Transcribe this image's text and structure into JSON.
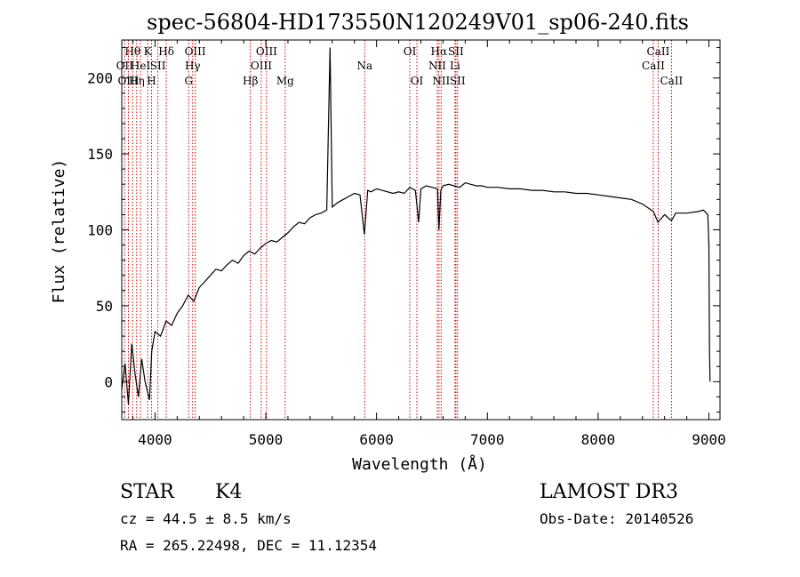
{
  "chart_data": {
    "type": "line",
    "title": "spec-56804-HD173550N120249V01_sp06-240.fits",
    "xlabel": "Wavelength (Å)",
    "ylabel": "Flux (relative)",
    "xlim": [
      3700,
      9100
    ],
    "ylim": [
      -25,
      225
    ],
    "x_ticks": [
      4000,
      5000,
      6000,
      7000,
      8000,
      9000
    ],
    "y_ticks": [
      0,
      50,
      100,
      150,
      200
    ],
    "series": [
      {
        "name": "flux",
        "points": [
          [
            3700,
            -5
          ],
          [
            3730,
            12
          ],
          [
            3760,
            -15
          ],
          [
            3790,
            25
          ],
          [
            3820,
            5
          ],
          [
            3850,
            -10
          ],
          [
            3880,
            15
          ],
          [
            3910,
            0
          ],
          [
            3950,
            -12
          ],
          [
            3970,
            20
          ],
          [
            4000,
            33
          ],
          [
            4050,
            30
          ],
          [
            4100,
            40
          ],
          [
            4150,
            37
          ],
          [
            4200,
            45
          ],
          [
            4250,
            50
          ],
          [
            4300,
            57
          ],
          [
            4350,
            53
          ],
          [
            4400,
            62
          ],
          [
            4450,
            66
          ],
          [
            4500,
            70
          ],
          [
            4550,
            74
          ],
          [
            4600,
            73
          ],
          [
            4650,
            77
          ],
          [
            4700,
            80
          ],
          [
            4750,
            78
          ],
          [
            4800,
            83
          ],
          [
            4850,
            86
          ],
          [
            4900,
            84
          ],
          [
            4950,
            88
          ],
          [
            5000,
            91
          ],
          [
            5050,
            93
          ],
          [
            5100,
            92
          ],
          [
            5150,
            95
          ],
          [
            5200,
            98
          ],
          [
            5250,
            102
          ],
          [
            5300,
            105
          ],
          [
            5350,
            104
          ],
          [
            5400,
            108
          ],
          [
            5450,
            110
          ],
          [
            5500,
            111
          ],
          [
            5550,
            113
          ],
          [
            5580,
            220
          ],
          [
            5600,
            115
          ],
          [
            5650,
            118
          ],
          [
            5700,
            120
          ],
          [
            5750,
            122
          ],
          [
            5800,
            124
          ],
          [
            5850,
            123
          ],
          [
            5890,
            97
          ],
          [
            5920,
            126
          ],
          [
            5950,
            125
          ],
          [
            6000,
            127
          ],
          [
            6050,
            126
          ],
          [
            6100,
            125
          ],
          [
            6150,
            124
          ],
          [
            6200,
            125
          ],
          [
            6250,
            124
          ],
          [
            6300,
            128
          ],
          [
            6350,
            126
          ],
          [
            6380,
            105
          ],
          [
            6400,
            127
          ],
          [
            6450,
            129
          ],
          [
            6500,
            128
          ],
          [
            6550,
            127
          ],
          [
            6563,
            100
          ],
          [
            6580,
            126
          ],
          [
            6600,
            129
          ],
          [
            6650,
            130
          ],
          [
            6700,
            129
          ],
          [
            6750,
            128
          ],
          [
            6800,
            131
          ],
          [
            6850,
            130
          ],
          [
            6900,
            129
          ],
          [
            6950,
            129
          ],
          [
            7000,
            128
          ],
          [
            7100,
            128
          ],
          [
            7200,
            127
          ],
          [
            7300,
            127
          ],
          [
            7400,
            126
          ],
          [
            7500,
            126
          ],
          [
            7600,
            125
          ],
          [
            7700,
            125
          ],
          [
            7800,
            124
          ],
          [
            7900,
            124
          ],
          [
            8000,
            123
          ],
          [
            8100,
            122
          ],
          [
            8200,
            121
          ],
          [
            8300,
            120
          ],
          [
            8400,
            117
          ],
          [
            8500,
            112
          ],
          [
            8540,
            105
          ],
          [
            8600,
            110
          ],
          [
            8662,
            106
          ],
          [
            8700,
            111
          ],
          [
            8800,
            111
          ],
          [
            8900,
            112
          ],
          [
            8950,
            113
          ],
          [
            8990,
            110
          ],
          [
            9000,
            90
          ],
          [
            9005,
            20
          ],
          [
            9010,
            0
          ]
        ]
      }
    ],
    "emission_lines": [
      {
        "x": 3726,
        "label": "OII",
        "row": 2
      },
      {
        "x": 3760,
        "label": "OIII",
        "row": 3
      },
      {
        "x": 3798,
        "label": "Hθ",
        "row": 1
      },
      {
        "x": 3835,
        "label": "Hη",
        "row": 3
      },
      {
        "x": 3869,
        "label": "HeI",
        "row": 2
      },
      {
        "x": 3934,
        "label": "K",
        "row": 1
      },
      {
        "x": 3969,
        "label": "H",
        "row": 3
      },
      {
        "x": 4026,
        "label": "SII",
        "row": 2
      },
      {
        "x": 4102,
        "label": "Hδ",
        "row": 1
      },
      {
        "x": 4304,
        "label": "G",
        "row": 3
      },
      {
        "x": 4340,
        "label": "Hγ",
        "row": 2
      },
      {
        "x": 4363,
        "label": "OIII",
        "row": 1
      },
      {
        "x": 4861,
        "label": "Hβ",
        "row": 3
      },
      {
        "x": 4959,
        "label": "OIII",
        "row": 2
      },
      {
        "x": 5007,
        "label": "OIII",
        "row": 1
      },
      {
        "x": 5175,
        "label": "Mg",
        "row": 3
      },
      {
        "x": 5893,
        "label": "Na",
        "row": 2
      },
      {
        "x": 6300,
        "label": "OI",
        "row": 1
      },
      {
        "x": 6364,
        "label": "OI",
        "row": 3
      },
      {
        "x": 6548,
        "label": "NII",
        "row": 2
      },
      {
        "x": 6563,
        "label": "Hα",
        "row": 1
      },
      {
        "x": 6583,
        "label": "NII",
        "row": 3
      },
      {
        "x": 6708,
        "label": "Li",
        "row": 2
      },
      {
        "x": 6716,
        "label": "SII",
        "row": 1
      },
      {
        "x": 6731,
        "label": "SII",
        "row": 3
      },
      {
        "x": 8498,
        "label": "CaII",
        "row": 2
      },
      {
        "x": 8542,
        "label": "CaII",
        "row": 1
      },
      {
        "x": 8662,
        "label": "CaII",
        "row": 3
      }
    ]
  },
  "info": {
    "class": "STAR",
    "subclass": "K4",
    "survey": "LAMOST DR3",
    "cz": "cz = 44.5 ± 8.5 km/s",
    "obs_date": "Obs-Date: 20140526",
    "radec": "RA = 265.22498, DEC =  11.12354"
  },
  "colors": {
    "line": "#000000",
    "marker": "#cc0000"
  }
}
